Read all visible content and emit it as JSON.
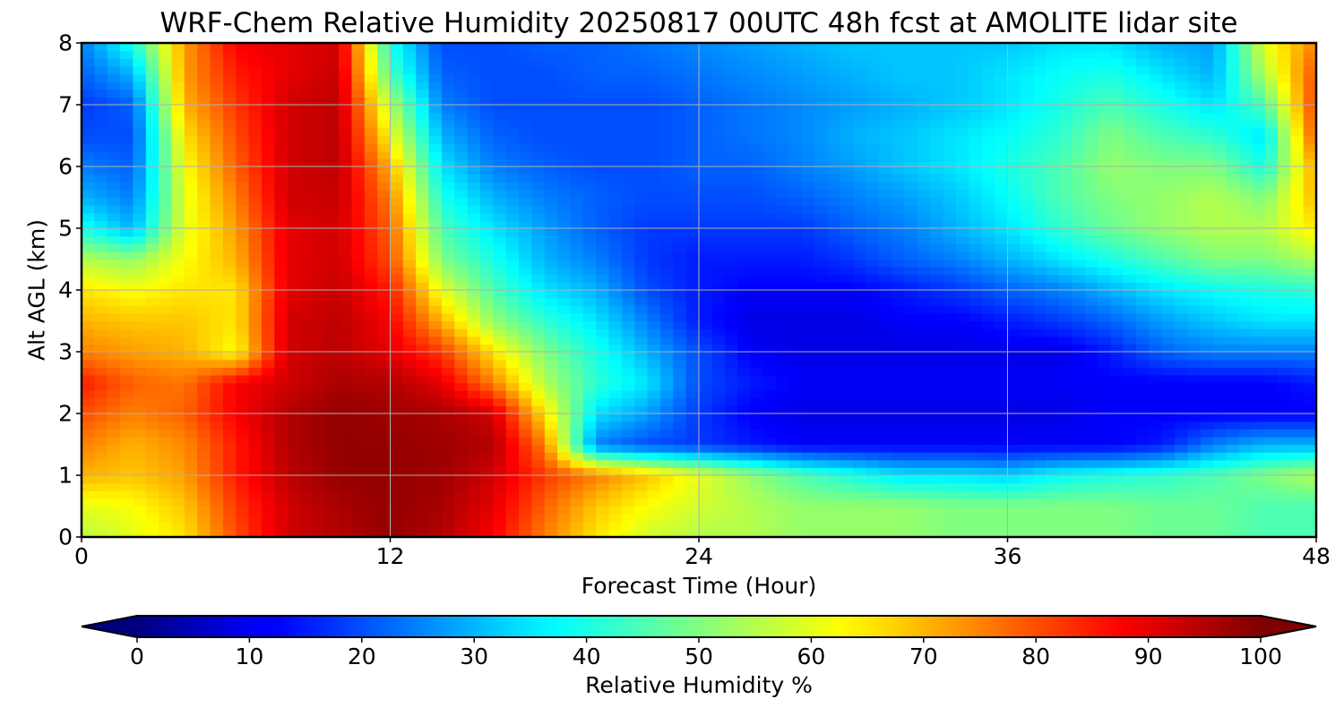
{
  "chart_data": {
    "type": "heatmap",
    "title": "WRF-Chem Relative Humidity 20250817 00UTC 48h fcst at AMOLITE lidar site",
    "xlabel": "Forecast Time (Hour)",
    "ylabel": "Alt AGL (km)",
    "xlim": [
      0,
      48
    ],
    "ylim": [
      0,
      8
    ],
    "x_ticks": [
      "0",
      "12",
      "24",
      "36",
      "48"
    ],
    "y_ticks": [
      "0",
      "1",
      "2",
      "3",
      "4",
      "5",
      "6",
      "7",
      "8"
    ],
    "grid": true,
    "colormap": "jet",
    "colorbar": {
      "label": "Relative Humidity %",
      "range": [
        0,
        100
      ],
      "ticks": [
        "0",
        "10",
        "20",
        "30",
        "40",
        "50",
        "60",
        "70",
        "80",
        "90",
        "100"
      ],
      "extend": "both",
      "orientation": "horizontal"
    },
    "x": [
      0,
      2,
      4,
      6,
      8,
      10,
      12,
      14,
      16,
      18,
      20,
      22,
      24,
      26,
      28,
      30,
      32,
      34,
      36,
      38,
      40,
      42,
      44,
      46,
      48
    ],
    "y": [
      0,
      0.5,
      1,
      1.5,
      2,
      2.5,
      3,
      3.5,
      4,
      4.5,
      5,
      5.5,
      6,
      6.5,
      7,
      7.5,
      8
    ],
    "values": [
      [
        55,
        60,
        65,
        80,
        92,
        95,
        98,
        95,
        88,
        75,
        65,
        58,
        55,
        55,
        52,
        52,
        52,
        50,
        50,
        50,
        50,
        48,
        48,
        45,
        45
      ],
      [
        60,
        62,
        68,
        82,
        92,
        96,
        98,
        96,
        90,
        78,
        68,
        62,
        58,
        55,
        52,
        52,
        52,
        50,
        50,
        50,
        50,
        48,
        48,
        45,
        45
      ],
      [
        70,
        68,
        72,
        85,
        94,
        98,
        98,
        97,
        92,
        82,
        75,
        68,
        60,
        52,
        45,
        40,
        35,
        35,
        33,
        38,
        40,
        42,
        45,
        50,
        55
      ],
      [
        75,
        70,
        74,
        85,
        95,
        98,
        98,
        97,
        95,
        75,
        25,
        20,
        18,
        15,
        12,
        12,
        12,
        12,
        12,
        12,
        12,
        15,
        25,
        30,
        30
      ],
      [
        80,
        75,
        78,
        88,
        95,
        98,
        97,
        96,
        92,
        65,
        35,
        28,
        18,
        12,
        10,
        10,
        10,
        10,
        10,
        10,
        12,
        12,
        12,
        12,
        12
      ],
      [
        85,
        78,
        76,
        88,
        92,
        96,
        95,
        90,
        75,
        55,
        42,
        35,
        20,
        15,
        12,
        12,
        12,
        12,
        12,
        12,
        12,
        12,
        12,
        12,
        15
      ],
      [
        75,
        72,
        70,
        62,
        92,
        94,
        90,
        82,
        65,
        50,
        40,
        30,
        20,
        12,
        10,
        10,
        10,
        10,
        10,
        10,
        15,
        22,
        25,
        25,
        25
      ],
      [
        70,
        68,
        68,
        65,
        92,
        94,
        88,
        70,
        52,
        42,
        35,
        25,
        15,
        10,
        10,
        10,
        12,
        12,
        15,
        18,
        22,
        28,
        32,
        35,
        35
      ],
      [
        65,
        62,
        65,
        65,
        90,
        93,
        85,
        60,
        45,
        35,
        30,
        20,
        15,
        12,
        12,
        12,
        15,
        18,
        22,
        25,
        30,
        35,
        38,
        40,
        42
      ],
      [
        55,
        52,
        62,
        70,
        90,
        92,
        80,
        50,
        40,
        30,
        25,
        18,
        15,
        15,
        15,
        18,
        22,
        25,
        30,
        35,
        40,
        45,
        50,
        50,
        55
      ],
      [
        40,
        30,
        60,
        72,
        90,
        92,
        78,
        45,
        35,
        28,
        22,
        18,
        18,
        18,
        18,
        22,
        25,
        30,
        35,
        42,
        48,
        52,
        55,
        55,
        65
      ],
      [
        30,
        25,
        60,
        75,
        92,
        93,
        75,
        40,
        30,
        25,
        22,
        20,
        20,
        20,
        22,
        25,
        28,
        32,
        38,
        45,
        50,
        52,
        55,
        50,
        70
      ],
      [
        25,
        22,
        62,
        78,
        92,
        94,
        70,
        35,
        25,
        22,
        20,
        20,
        22,
        22,
        25,
        28,
        32,
        35,
        40,
        45,
        52,
        50,
        50,
        40,
        72
      ],
      [
        20,
        20,
        65,
        80,
        92,
        94,
        62,
        30,
        22,
        20,
        20,
        20,
        22,
        24,
        26,
        30,
        32,
        35,
        38,
        42,
        50,
        45,
        42,
        35,
        80
      ],
      [
        18,
        22,
        70,
        82,
        92,
        94,
        55,
        25,
        20,
        20,
        20,
        20,
        22,
        24,
        26,
        28,
        30,
        32,
        35,
        40,
        45,
        40,
        35,
        45,
        82
      ],
      [
        22,
        30,
        72,
        85,
        90,
        93,
        45,
        22,
        20,
        20,
        22,
        22,
        24,
        26,
        28,
        30,
        32,
        32,
        35,
        38,
        40,
        35,
        30,
        55,
        80
      ],
      [
        25,
        40,
        72,
        88,
        90,
        92,
        40,
        20,
        20,
        22,
        22,
        24,
        26,
        28,
        30,
        32,
        32,
        32,
        32,
        35,
        35,
        30,
        28,
        60,
        75
      ]
    ]
  },
  "colors": {
    "axis": "#000000",
    "grid": "#b0b0b0"
  }
}
